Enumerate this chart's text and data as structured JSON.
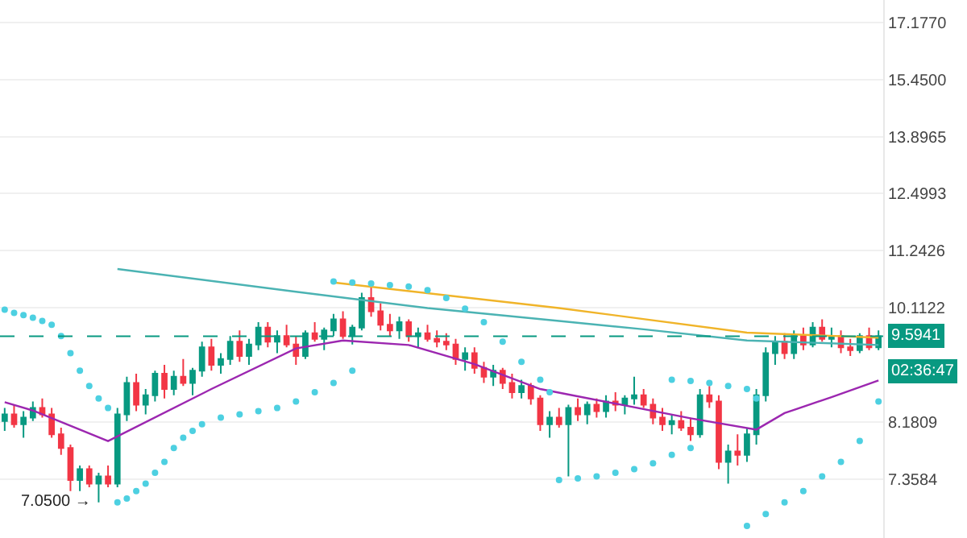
{
  "chart_data": {
    "type": "candlestick",
    "log": "y",
    "grid": "y",
    "tick_labels": "y",
    "categories": [
      null,
      null,
      null,
      null,
      null,
      null,
      null,
      null,
      null,
      null,
      null,
      null,
      null,
      null,
      null,
      null,
      null,
      null,
      null,
      null,
      null,
      null,
      null,
      null,
      null,
      null,
      null,
      null,
      null,
      null,
      null,
      null,
      null,
      null,
      null,
      null,
      null,
      null,
      null,
      null,
      null,
      null,
      null,
      null,
      null,
      null,
      null,
      null,
      null,
      null,
      null,
      null,
      null,
      null,
      null,
      null,
      null,
      null,
      null,
      null,
      null,
      null,
      null,
      null,
      null,
      null,
      null,
      null,
      null,
      null,
      null,
      null,
      null,
      null,
      null,
      null,
      null,
      null,
      null,
      null,
      null,
      null,
      null,
      null,
      null,
      null,
      null,
      null,
      null,
      null,
      null,
      null,
      null,
      null
    ],
    "ohlc": [
      [
        8.2,
        8.4,
        8.05,
        8.3
      ],
      [
        8.3,
        8.45,
        8.1,
        8.15
      ],
      [
        8.15,
        8.35,
        7.95,
        8.25
      ],
      [
        8.25,
        8.5,
        8.2,
        8.4
      ],
      [
        8.4,
        8.55,
        8.25,
        8.3
      ],
      [
        8.3,
        8.4,
        7.95,
        8.0
      ],
      [
        8.0,
        8.1,
        7.7,
        7.8
      ],
      [
        7.8,
        7.85,
        7.2,
        7.35
      ],
      [
        7.35,
        7.55,
        7.2,
        7.5
      ],
      [
        7.5,
        7.55,
        7.25,
        7.3
      ],
      [
        7.3,
        7.45,
        7.05,
        7.4
      ],
      [
        7.4,
        7.55,
        7.25,
        7.3
      ],
      [
        7.3,
        8.4,
        7.25,
        8.3
      ],
      [
        8.3,
        8.9,
        8.2,
        8.8
      ],
      [
        8.8,
        8.95,
        8.35,
        8.45
      ],
      [
        8.45,
        8.7,
        8.3,
        8.6
      ],
      [
        8.6,
        9.0,
        8.5,
        8.95
      ],
      [
        8.95,
        9.1,
        8.55,
        8.7
      ],
      [
        8.7,
        9.0,
        8.6,
        8.9
      ],
      [
        8.9,
        9.2,
        8.75,
        8.8
      ],
      [
        8.8,
        9.05,
        8.6,
        9.0
      ],
      [
        9.0,
        9.5,
        8.9,
        9.4
      ],
      [
        9.4,
        9.55,
        9.0,
        9.1
      ],
      [
        9.1,
        9.3,
        8.95,
        9.2
      ],
      [
        9.2,
        9.6,
        9.1,
        9.5
      ],
      [
        9.5,
        9.7,
        9.15,
        9.25
      ],
      [
        9.25,
        9.55,
        9.1,
        9.45
      ],
      [
        9.45,
        9.85,
        9.35,
        9.75
      ],
      [
        9.75,
        9.85,
        9.4,
        9.5
      ],
      [
        9.5,
        9.7,
        9.3,
        9.6
      ],
      [
        9.6,
        9.8,
        9.4,
        9.45
      ],
      [
        9.45,
        9.6,
        9.1,
        9.25
      ],
      [
        9.25,
        9.7,
        9.2,
        9.65
      ],
      [
        9.65,
        9.85,
        9.5,
        9.55
      ],
      [
        9.55,
        9.75,
        9.35,
        9.7
      ],
      [
        9.7,
        10.0,
        9.6,
        9.9
      ],
      [
        9.9,
        10.05,
        9.55,
        9.6
      ],
      [
        9.6,
        9.8,
        9.45,
        9.75
      ],
      [
        9.75,
        10.4,
        9.7,
        10.3
      ],
      [
        10.3,
        10.6,
        9.95,
        10.05
      ],
      [
        10.05,
        10.2,
        9.7,
        9.8
      ],
      [
        9.8,
        10.0,
        9.6,
        9.7
      ],
      [
        9.7,
        9.95,
        9.55,
        9.85
      ],
      [
        9.85,
        9.9,
        9.5,
        9.6
      ],
      [
        9.6,
        9.75,
        9.4,
        9.65
      ],
      [
        9.65,
        9.8,
        9.5,
        9.55
      ],
      [
        9.55,
        9.7,
        9.4,
        9.5
      ],
      [
        9.5,
        9.65,
        9.35,
        9.45
      ],
      [
        9.45,
        9.55,
        9.1,
        9.2
      ],
      [
        9.2,
        9.4,
        9.0,
        9.3
      ],
      [
        9.3,
        9.4,
        8.95,
        9.05
      ],
      [
        9.05,
        9.15,
        8.8,
        8.9
      ],
      [
        8.9,
        9.1,
        8.75,
        9.0
      ],
      [
        9.0,
        9.05,
        8.7,
        8.8
      ],
      [
        8.8,
        8.95,
        8.55,
        8.65
      ],
      [
        8.65,
        8.85,
        8.55,
        8.75
      ],
      [
        8.75,
        8.8,
        8.45,
        8.55
      ],
      [
        8.55,
        8.6,
        8.05,
        8.15
      ],
      [
        8.15,
        8.35,
        7.95,
        8.25
      ],
      [
        8.25,
        8.4,
        8.1,
        8.15
      ],
      [
        8.15,
        8.45,
        7.4,
        8.4
      ],
      [
        8.4,
        8.55,
        8.2,
        8.3
      ],
      [
        8.3,
        8.5,
        8.15,
        8.45
      ],
      [
        8.45,
        8.55,
        8.25,
        8.35
      ],
      [
        8.35,
        8.6,
        8.25,
        8.5
      ],
      [
        8.5,
        8.65,
        8.35,
        8.45
      ],
      [
        8.45,
        8.6,
        8.3,
        8.55
      ],
      [
        8.55,
        8.9,
        8.45,
        8.6
      ],
      [
        8.6,
        8.7,
        8.4,
        8.45
      ],
      [
        8.45,
        8.55,
        8.15,
        8.25
      ],
      [
        8.25,
        8.4,
        8.05,
        8.15
      ],
      [
        8.15,
        8.3,
        8.0,
        8.2
      ],
      [
        8.2,
        8.35,
        8.05,
        8.1
      ],
      [
        8.1,
        8.25,
        7.9,
        8.0
      ],
      [
        8.0,
        8.7,
        7.95,
        8.6
      ],
      [
        8.6,
        8.75,
        8.4,
        8.5
      ],
      [
        8.5,
        8.6,
        7.5,
        7.6
      ],
      [
        7.6,
        7.85,
        7.3,
        7.75
      ],
      [
        7.75,
        8.0,
        7.55,
        7.7
      ],
      [
        7.7,
        8.1,
        7.6,
        8.0
      ],
      [
        8.0,
        8.7,
        7.85,
        8.6
      ],
      [
        8.6,
        9.4,
        8.5,
        9.3
      ],
      [
        9.3,
        9.6,
        9.1,
        9.5
      ],
      [
        9.5,
        9.65,
        9.2,
        9.3
      ],
      [
        9.3,
        9.7,
        9.2,
        9.6
      ],
      [
        9.6,
        9.75,
        9.35,
        9.45
      ],
      [
        9.45,
        9.85,
        9.4,
        9.75
      ],
      [
        9.75,
        9.9,
        9.5,
        9.55
      ],
      [
        9.55,
        9.75,
        9.4,
        9.6
      ],
      [
        9.6,
        9.7,
        9.3,
        9.4
      ],
      [
        9.4,
        9.55,
        9.25,
        9.35
      ],
      [
        9.35,
        9.65,
        9.3,
        9.6
      ],
      [
        9.6,
        9.75,
        9.35,
        9.4
      ],
      [
        9.4,
        9.7,
        9.35,
        9.5941
      ]
    ],
    "colors": [
      "#089981",
      "#f23645",
      "#089981",
      "#089981",
      "#f23645",
      "#f23645",
      "#f23645",
      "#f23645",
      "#089981",
      "#f23645",
      "#089981",
      "#f23645",
      "#089981",
      "#089981",
      "#f23645",
      "#089981",
      "#089981",
      "#f23645",
      "#089981",
      "#f23645",
      "#089981",
      "#089981",
      "#f23645",
      "#089981",
      "#089981",
      "#f23645",
      "#089981",
      "#089981",
      "#f23645",
      "#089981",
      "#f23645",
      "#f23645",
      "#089981",
      "#f23645",
      "#089981",
      "#089981",
      "#f23645",
      "#089981",
      "#089981",
      "#f23645",
      "#f23645",
      "#f23645",
      "#089981",
      "#f23645",
      "#089981",
      "#f23645",
      "#f23645",
      "#f23645",
      "#f23645",
      "#089981",
      "#f23645",
      "#f23645",
      "#089981",
      "#f23645",
      "#f23645",
      "#089981",
      "#f23645",
      "#f23645",
      "#089981",
      "#f23645",
      "#089981",
      "#f23645",
      "#089981",
      "#f23645",
      "#089981",
      "#f23645",
      "#089981",
      "#089981",
      "#f23645",
      "#f23645",
      "#f23645",
      "#089981",
      "#f23645",
      "#f23645",
      "#089981",
      "#f23645",
      "#f23645",
      "#089981",
      "#f23645",
      "#089981",
      "#089981",
      "#089981",
      "#089981",
      "#f23645",
      "#089981",
      "#f23645",
      "#089981",
      "#f23645",
      "#089981",
      "#f23645",
      "#f23645",
      "#089981",
      "#f23645",
      "#089981"
    ],
    "series": [
      {
        "type": "line",
        "color": "#9c27b0",
        "values": [
          8.49,
          null,
          null,
          8.36,
          null,
          null,
          null,
          null,
          null,
          null,
          null,
          7.9,
          null,
          null,
          null,
          null,
          null,
          null,
          null,
          null,
          null,
          null,
          8.7,
          null,
          null,
          null,
          null,
          null,
          null,
          null,
          null,
          9.38,
          null,
          null,
          null,
          null,
          9.52,
          null,
          null,
          null,
          null,
          null,
          null,
          9.44,
          null,
          null,
          null,
          null,
          null,
          null,
          9.11,
          null,
          null,
          null,
          null,
          null,
          null,
          8.7,
          null,
          null,
          null,
          null,
          null,
          null,
          null,
          null,
          8.44,
          null,
          null,
          null,
          null,
          null,
          null,
          8.24,
          null,
          null,
          null,
          null,
          null,
          null,
          8.07,
          null,
          null,
          8.32,
          null,
          null,
          null,
          null,
          8.57,
          null,
          null,
          null,
          null,
          8.84
        ]
      },
      {
        "type": "line",
        "color": "#4bb3b3",
        "values": [
          null,
          null,
          null,
          null,
          null,
          null,
          null,
          null,
          null,
          null,
          null,
          null,
          10.87,
          null,
          null,
          null,
          null,
          null,
          null,
          null,
          null,
          null,
          null,
          null,
          null,
          null,
          null,
          null,
          null,
          null,
          null,
          10.42,
          null,
          null,
          null,
          null,
          null,
          null,
          null,
          null,
          null,
          null,
          null,
          null,
          null,
          10.11,
          null,
          null,
          null,
          null,
          null,
          null,
          null,
          null,
          null,
          null,
          null,
          null,
          null,
          9.87,
          null,
          null,
          null,
          null,
          null,
          null,
          null,
          null,
          9.72,
          null,
          null,
          null,
          null,
          null,
          null,
          null,
          null,
          null,
          null,
          9.52,
          null,
          null,
          null,
          null,
          null,
          null,
          null,
          null,
          null,
          null,
          null,
          null,
          null,
          9.44
        ]
      },
      {
        "type": "line",
        "color": "#f0b429",
        "values": [
          null,
          null,
          null,
          null,
          null,
          null,
          null,
          null,
          null,
          null,
          null,
          null,
          null,
          null,
          null,
          null,
          null,
          null,
          null,
          null,
          null,
          null,
          null,
          null,
          null,
          null,
          null,
          null,
          null,
          null,
          null,
          null,
          null,
          null,
          null,
          10.6,
          null,
          null,
          null,
          null,
          null,
          null,
          null,
          null,
          null,
          null,
          null,
          null,
          null,
          null,
          null,
          null,
          null,
          null,
          null,
          null,
          null,
          null,
          null,
          10.11,
          null,
          null,
          null,
          null,
          null,
          null,
          null,
          null,
          null,
          null,
          null,
          null,
          null,
          null,
          null,
          null,
          null,
          null,
          null,
          9.66,
          null,
          null,
          null,
          null,
          null,
          null,
          null,
          null,
          null,
          null,
          null,
          null,
          null,
          9.57
        ]
      },
      {
        "type": "scatter",
        "color": "#4dd0e1",
        "marker": "circle",
        "values": [
          10.08,
          10.02,
          9.98,
          9.93,
          9.87,
          9.8,
          9.6,
          9.3,
          9.0,
          8.75,
          8.55,
          8.4,
          null,
          null,
          null,
          null,
          null,
          null,
          null,
          null,
          null,
          null,
          null,
          null,
          null,
          null,
          null,
          null,
          null,
          null,
          null,
          null,
          null,
          null,
          null,
          null,
          null,
          null,
          null,
          null,
          null,
          null,
          null,
          null,
          null,
          null,
          null,
          null,
          null,
          null,
          null,
          null,
          null,
          null,
          null,
          null,
          null,
          null,
          null,
          null,
          null,
          null,
          null,
          null,
          null,
          null,
          null,
          null,
          null,
          null,
          null,
          null,
          null,
          null,
          null,
          null,
          null,
          null,
          null,
          null,
          null,
          null,
          null,
          null,
          null,
          null,
          null,
          null,
          null,
          null,
          null,
          null,
          null,
          null
        ]
      },
      {
        "type": "scatter",
        "color": "#4dd0e1",
        "marker": "circle",
        "values": [
          null,
          null,
          null,
          null,
          null,
          null,
          null,
          null,
          null,
          null,
          null,
          null,
          7.05,
          7.1,
          7.2,
          7.3,
          7.45,
          7.6,
          7.8,
          7.95,
          8.05,
          8.15,
          null,
          8.25,
          null,
          8.3,
          null,
          8.35,
          null,
          8.4,
          null,
          8.5,
          null,
          8.65,
          null,
          8.8,
          null,
          9.0,
          null,
          null,
          null,
          null,
          null,
          null,
          null,
          null,
          null,
          null,
          null,
          null,
          null,
          null,
          null,
          null,
          null,
          null,
          null,
          null,
          null,
          null,
          null,
          null,
          null,
          null,
          null,
          null,
          null,
          null,
          null,
          null,
          null,
          null,
          null,
          null,
          null,
          null,
          null,
          null,
          null,
          null,
          null,
          null,
          null,
          null,
          null,
          null,
          null,
          null,
          null,
          null,
          null,
          null,
          null,
          null
        ]
      },
      {
        "type": "scatter",
        "color": "#4dd0e1",
        "marker": "circle",
        "values": [
          null,
          null,
          null,
          null,
          null,
          null,
          null,
          null,
          null,
          null,
          null,
          null,
          null,
          null,
          null,
          null,
          null,
          null,
          null,
          null,
          null,
          null,
          null,
          null,
          null,
          null,
          null,
          null,
          null,
          null,
          null,
          null,
          null,
          null,
          null,
          10.62,
          null,
          10.6,
          null,
          10.58,
          null,
          10.55,
          null,
          10.52,
          null,
          10.45,
          null,
          10.3,
          null,
          10.1,
          null,
          9.85,
          null,
          9.5,
          null,
          9.15,
          null,
          8.85,
          8.65,
          null,
          null,
          null,
          null,
          null,
          null,
          null,
          null,
          null,
          null,
          null,
          null,
          null,
          null,
          null,
          null,
          null,
          null,
          null,
          null,
          null,
          null,
          null,
          null,
          null,
          null,
          null,
          null,
          null,
          null,
          null,
          null,
          null,
          null,
          null
        ]
      },
      {
        "type": "scatter",
        "color": "#4dd0e1",
        "marker": "circle",
        "values": [
          null,
          null,
          null,
          null,
          null,
          null,
          null,
          null,
          null,
          null,
          null,
          null,
          null,
          null,
          null,
          null,
          null,
          null,
          null,
          null,
          null,
          null,
          null,
          null,
          null,
          null,
          null,
          null,
          null,
          null,
          null,
          null,
          null,
          null,
          null,
          null,
          null,
          null,
          null,
          null,
          null,
          null,
          null,
          null,
          null,
          null,
          null,
          null,
          null,
          null,
          null,
          null,
          null,
          null,
          null,
          null,
          null,
          null,
          null,
          7.35,
          null,
          7.37,
          null,
          7.4,
          null,
          7.45,
          null,
          7.5,
          null,
          7.58,
          null,
          7.7,
          null,
          7.8,
          null,
          null,
          null,
          null,
          null,
          null,
          null,
          null,
          null,
          null,
          null,
          null,
          null,
          null,
          null,
          null,
          null,
          null,
          null,
          null
        ]
      },
      {
        "type": "scatter",
        "color": "#4dd0e1",
        "marker": "circle",
        "values": [
          null,
          null,
          null,
          null,
          null,
          null,
          null,
          null,
          null,
          null,
          null,
          null,
          null,
          null,
          null,
          null,
          null,
          null,
          null,
          null,
          null,
          null,
          null,
          null,
          null,
          null,
          null,
          null,
          null,
          null,
          null,
          null,
          null,
          null,
          null,
          null,
          null,
          null,
          null,
          null,
          null,
          null,
          null,
          null,
          null,
          null,
          null,
          null,
          null,
          null,
          null,
          null,
          null,
          null,
          null,
          null,
          null,
          null,
          null,
          null,
          null,
          null,
          null,
          null,
          null,
          null,
          null,
          null,
          null,
          null,
          null,
          8.85,
          null,
          8.83,
          null,
          8.8,
          null,
          8.75,
          null,
          8.7,
          8.55,
          null,
          null,
          null,
          null,
          null,
          null,
          null,
          null,
          null,
          null,
          null,
          null,
          null
        ]
      },
      {
        "type": "scatter",
        "color": "#4dd0e1",
        "marker": "circle",
        "values": [
          null,
          null,
          null,
          null,
          null,
          null,
          null,
          null,
          null,
          null,
          null,
          null,
          null,
          null,
          null,
          null,
          null,
          null,
          null,
          null,
          null,
          null,
          null,
          null,
          null,
          null,
          null,
          null,
          null,
          null,
          null,
          null,
          null,
          null,
          null,
          null,
          null,
          null,
          null,
          null,
          null,
          null,
          null,
          null,
          null,
          null,
          null,
          null,
          null,
          null,
          null,
          null,
          null,
          null,
          null,
          null,
          null,
          null,
          null,
          null,
          null,
          null,
          null,
          null,
          null,
          null,
          null,
          null,
          null,
          null,
          null,
          null,
          null,
          null,
          null,
          null,
          null,
          null,
          null,
          6.75,
          null,
          6.9,
          null,
          7.05,
          null,
          7.2,
          null,
          7.4,
          null,
          7.6,
          null,
          7.9,
          null,
          8.5
        ]
      }
    ],
    "ylim": [
      6.6,
      17.9
    ],
    "yticks": [
      {
        "value": 7.3584,
        "label": "7.3584"
      },
      {
        "value": 8.1809,
        "label": "8.1809"
      },
      {
        "value": 10.1122,
        "label": "10.1122"
      },
      {
        "value": 11.2426,
        "label": "11.2426"
      },
      {
        "value": 12.4993,
        "label": "12.4993"
      },
      {
        "value": 13.8965,
        "label": "13.8965"
      },
      {
        "value": 15.45,
        "label": "15.4500"
      },
      {
        "value": 17.177,
        "label": "17.1770"
      }
    ],
    "ref_lines": [
      {
        "axis": "y",
        "value": 9.5941,
        "label": "9.5941",
        "color": "#089981",
        "line_style": "dashed"
      }
    ],
    "annotations": [
      "02:36:47",
      "7.0500 →"
    ]
  }
}
